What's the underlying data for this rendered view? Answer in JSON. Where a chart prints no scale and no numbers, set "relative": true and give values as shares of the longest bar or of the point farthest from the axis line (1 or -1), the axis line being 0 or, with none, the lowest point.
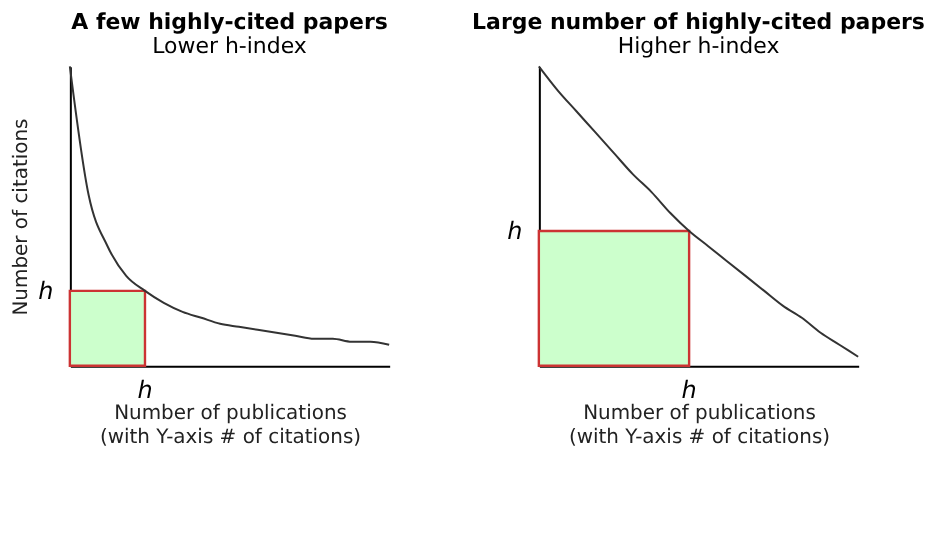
{
  "chart_data": [
    {
      "type": "line",
      "title": "A few highly-cited papers",
      "subtitle": "Lower h-index",
      "xlabel": "Number of publications\n(with Y-axis # of citations)",
      "ylabel": "Number of citations",
      "relative": true,
      "categories": [
        null,
        null,
        null,
        null,
        null,
        null,
        null,
        null,
        null,
        null,
        null,
        null,
        null,
        null,
        null,
        null,
        null,
        null
      ],
      "annotations": [
        "h",
        "h"
      ],
      "series": [
        {
          "color": "#333333",
          "values": [
            1,
            0.57,
            0.4,
            0.3,
            0.25,
            0.21,
            0.18,
            0.16,
            0.14,
            0.13,
            0.12,
            0.11,
            0.1,
            0.09,
            0.09,
            0.08,
            0.08,
            0.07
          ]
        },
        {
          "type": "area",
          "color": "#ccffcc",
          "values": [
            0.25,
            0.25,
            0.25,
            0.25,
            0.25,
            null,
            null,
            null,
            null,
            null,
            null,
            null,
            null,
            null,
            null,
            null,
            null,
            null
          ]
        }
      ]
    },
    {
      "type": "line",
      "title": "Large number of highly-cited papers",
      "subtitle": "Higher h-index",
      "xlabel": "Number of publications\n(with Y-axis # of citations)",
      "relative": true,
      "categories": [
        null,
        null,
        null,
        null,
        null,
        null,
        null,
        null,
        null,
        null,
        null,
        null,
        null,
        null,
        null,
        null,
        null,
        null
      ],
      "annotations": [
        "h",
        "h"
      ],
      "series": [
        {
          "color": "#333333",
          "values": [
            1,
            0.92,
            0.85,
            0.78,
            0.71,
            0.64,
            0.58,
            0.51,
            0.45,
            0.4,
            0.35,
            0.3,
            0.25,
            0.2,
            0.16,
            0.11,
            0.07,
            0.03
          ]
        },
        {
          "type": "area",
          "color": "#ccffcc",
          "values": [
            0.45,
            0.45,
            0.45,
            0.45,
            0.45,
            0.45,
            0.45,
            0.45,
            0.45,
            null,
            null,
            null,
            null,
            null,
            null,
            null,
            null,
            null
          ]
        }
      ]
    }
  ]
}
